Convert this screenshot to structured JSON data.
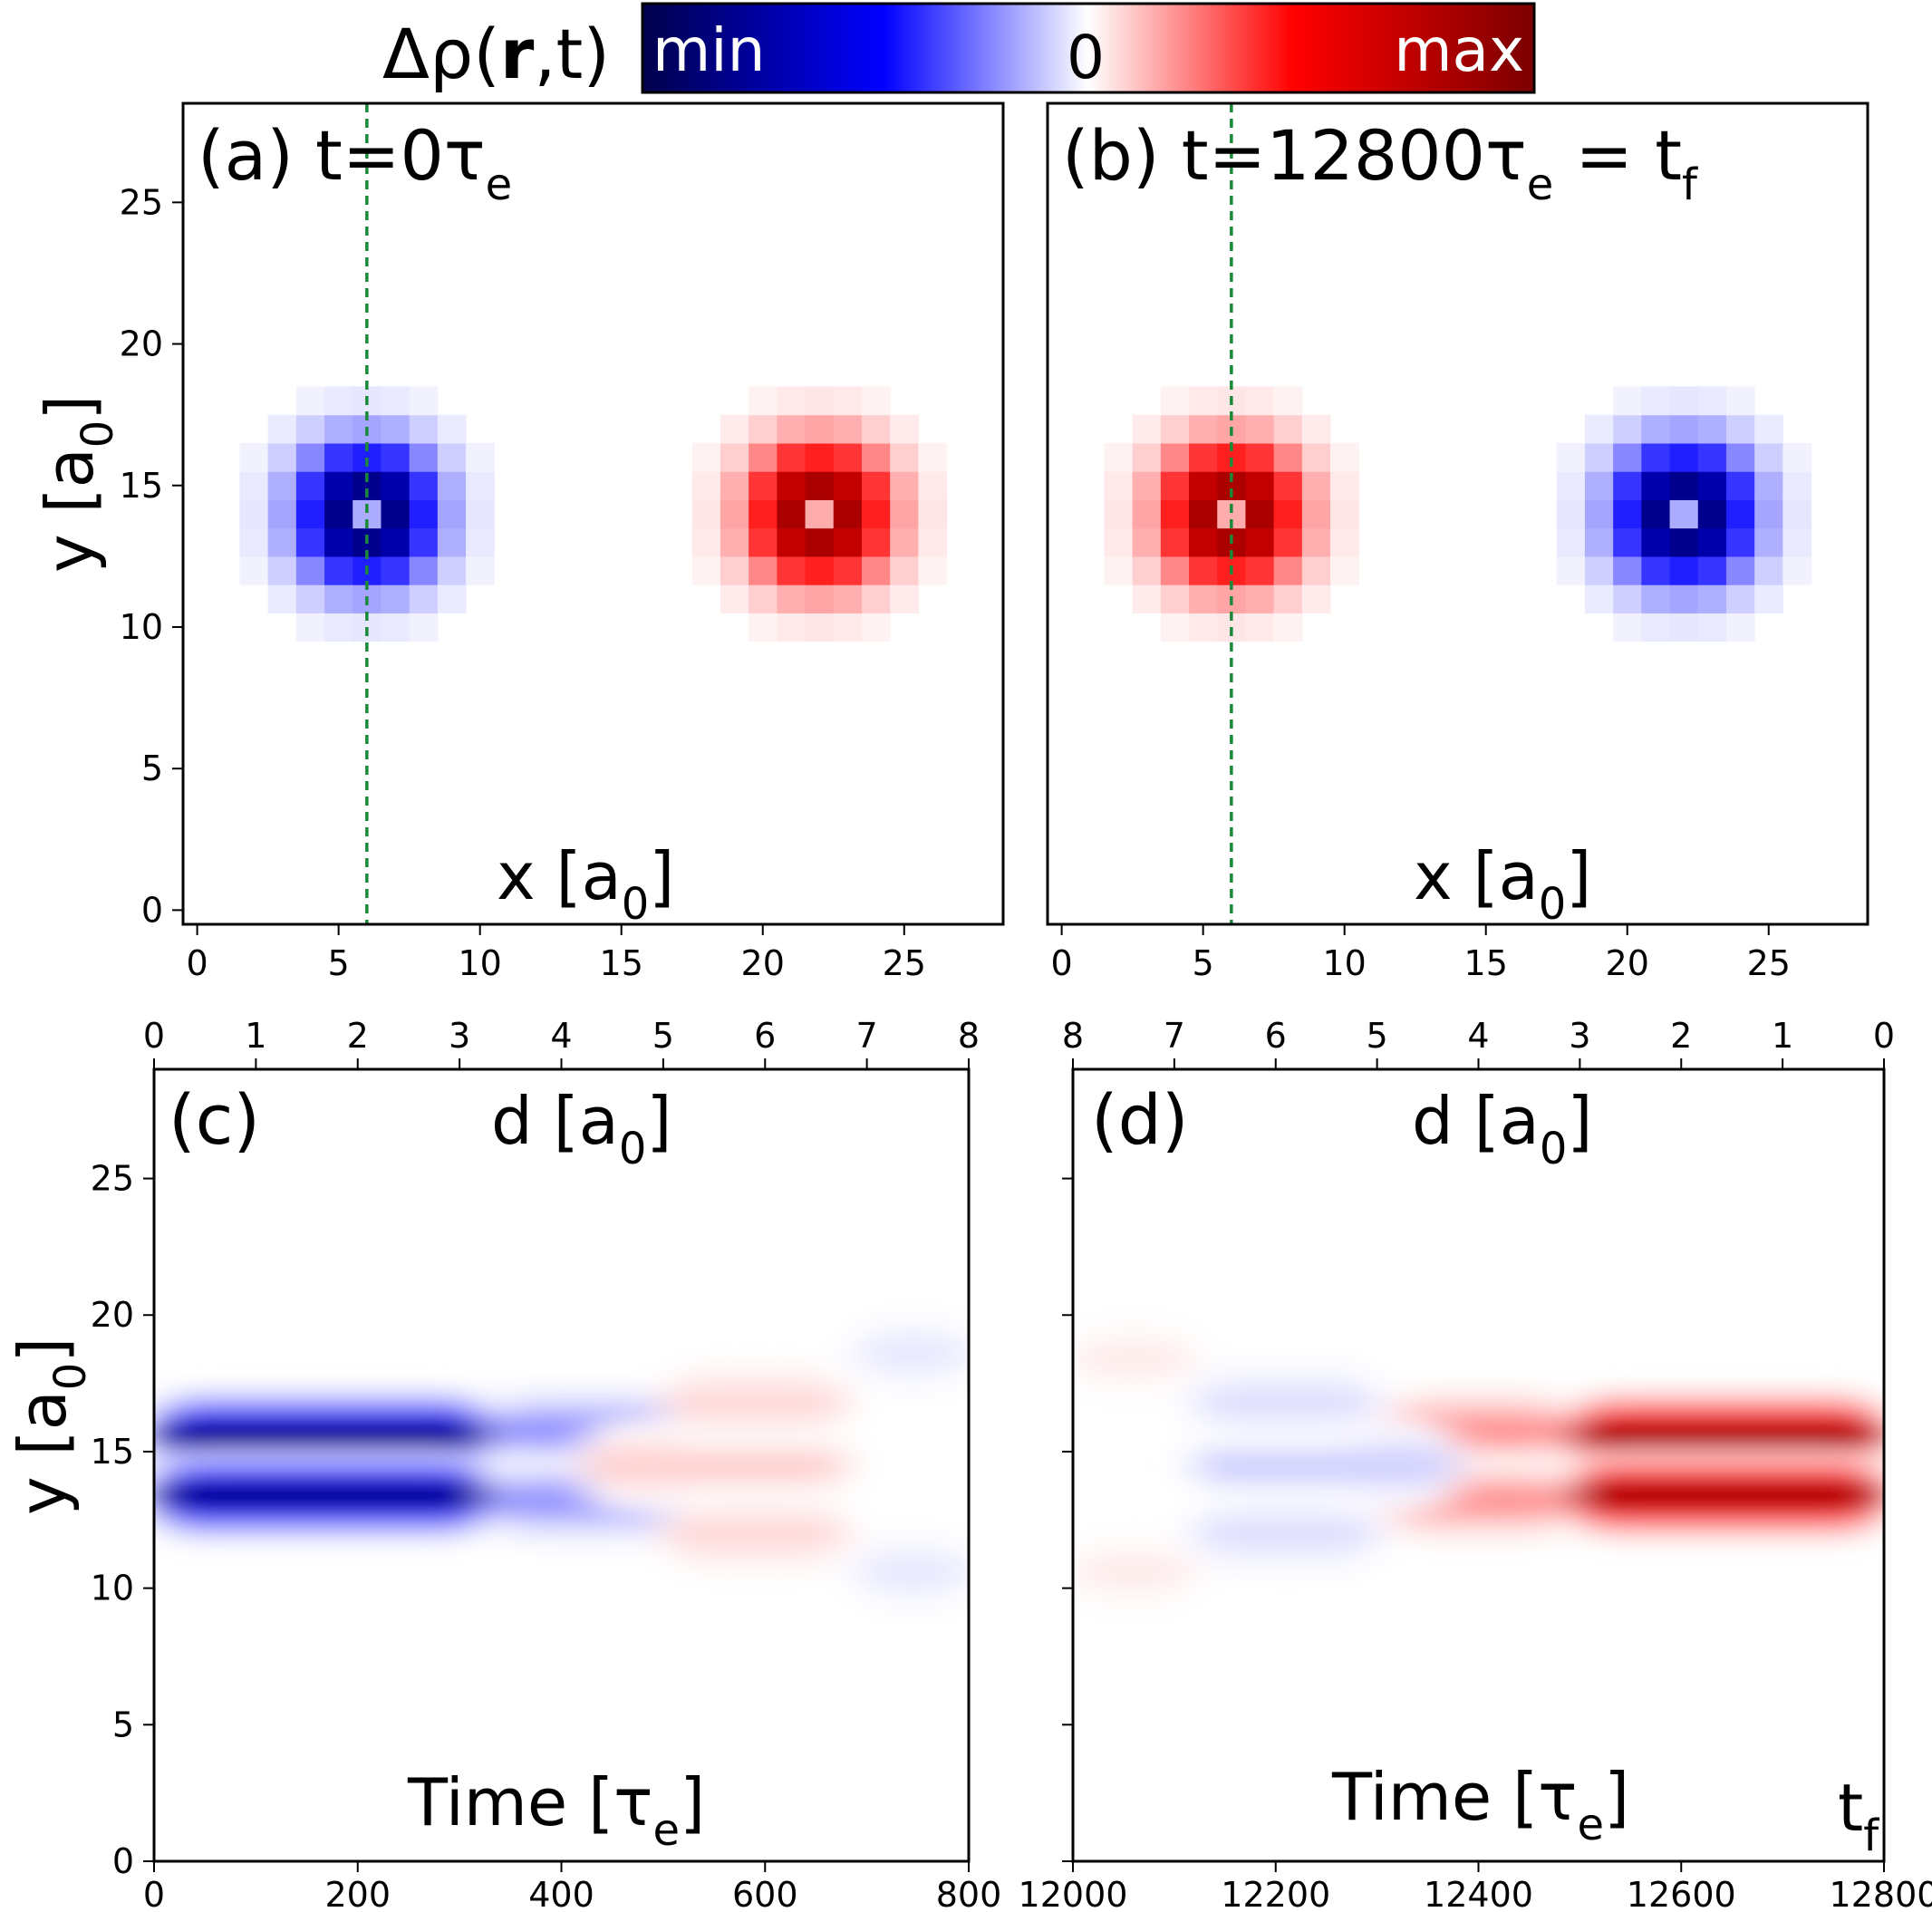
{
  "figure": {
    "colorbar": {
      "symbol": "Δρ(",
      "symbol_bold": "r",
      "symbol_tail": ",t)",
      "min_label": "min",
      "zero_label": "0",
      "max_label": "max",
      "colors": [
        "#00004a",
        "#0000ff",
        "#ffffff",
        "#ff0000",
        "#7a0000"
      ]
    },
    "panels": {
      "a": {
        "label": "(a) t=0τ",
        "label_sub": "e"
      },
      "b": {
        "label": "(b) t=12800τ",
        "label_sub": "e",
        "label_tail": " = t",
        "label_tail_sub": "f"
      },
      "c": {
        "label": "(c)"
      },
      "d": {
        "label": "(d)"
      }
    },
    "axis_texts": {
      "x_label": "x [a",
      "x_sub": "0",
      "x_close": "]",
      "y_label": "y [a",
      "y_sub": "0",
      "y_close": "]",
      "d_label": "d [a",
      "d_sub": "0",
      "d_close": "]",
      "time_label": "Time [τ",
      "time_sub": "e",
      "time_close": "]",
      "tf_label": "t",
      "tf_sub": "f"
    },
    "guide_line_color": "#1a8a3a"
  },
  "chart_data": [
    {
      "panel": "a",
      "type": "heatmap",
      "title": "(a) t=0τe",
      "xlabel": "x [a0]",
      "ylabel": "y [a0]",
      "xlim": [
        -0.5,
        28.5
      ],
      "ylim": [
        -0.5,
        28.5
      ],
      "xticks": [
        0,
        5,
        10,
        15,
        20,
        25
      ],
      "yticks": [
        0,
        5,
        10,
        15,
        20,
        25
      ],
      "guide_line_x": 6,
      "blobs": [
        {
          "center": [
            6,
            14
          ],
          "sign": -1,
          "amplitude": 1.0
        },
        {
          "center": [
            22,
            14
          ],
          "sign": 1,
          "amplitude": 1.0
        }
      ]
    },
    {
      "panel": "b",
      "type": "heatmap",
      "title": "(b) t=12800τe = tf",
      "xlabel": "x [a0]",
      "xlim": [
        -0.5,
        28.5
      ],
      "ylim": [
        -0.5,
        28.5
      ],
      "xticks": [
        0,
        5,
        10,
        15,
        20,
        25
      ],
      "guide_line_x": 6,
      "blobs": [
        {
          "center": [
            6,
            14
          ],
          "sign": 1,
          "amplitude": 1.0
        },
        {
          "center": [
            22,
            14
          ],
          "sign": -1,
          "amplitude": 1.0
        }
      ]
    },
    {
      "panel": "c",
      "type": "heatmap",
      "xlabel": "Time [τe]",
      "ylabel": "y [a0]",
      "top_xlabel": "d [a0]",
      "xlim": [
        0,
        800
      ],
      "ylim": [
        0,
        29
      ],
      "xticks": [
        0,
        200,
        400,
        600,
        800
      ],
      "yticks": [
        0,
        5,
        10,
        15,
        20,
        25
      ],
      "top_ticks": [
        0,
        1,
        2,
        3,
        4,
        5,
        6,
        7,
        8
      ],
      "top_ticks_reversed": false,
      "bands": [
        {
          "t_start": 0,
          "t_end": 330,
          "y": 15.6,
          "sign": -1,
          "amplitude": 1.0
        },
        {
          "t_start": 0,
          "t_end": 330,
          "y": 13.4,
          "sign": -1,
          "amplitude": 1.0
        },
        {
          "t_start": 330,
          "t_end": 510,
          "y": 15.8,
          "sign": -1,
          "amplitude": 0.28
        },
        {
          "t_start": 330,
          "t_end": 510,
          "y": 13.2,
          "sign": -1,
          "amplitude": 0.28
        },
        {
          "t_start": 420,
          "t_end": 680,
          "y": 14.5,
          "sign": 1,
          "amplitude": 0.12
        },
        {
          "t_start": 500,
          "t_end": 680,
          "y": 16.8,
          "sign": 1,
          "amplitude": 0.1
        },
        {
          "t_start": 500,
          "t_end": 680,
          "y": 12.0,
          "sign": 1,
          "amplitude": 0.1
        },
        {
          "t_start": 690,
          "t_end": 800,
          "y": 18.6,
          "sign": -1,
          "amplitude": 0.06
        },
        {
          "t_start": 690,
          "t_end": 800,
          "y": 10.6,
          "sign": -1,
          "amplitude": 0.06
        }
      ]
    },
    {
      "panel": "d",
      "type": "heatmap",
      "xlabel": "Time [τe]",
      "top_xlabel": "d [a0]",
      "xlim": [
        12000,
        12800
      ],
      "ylim": [
        0,
        29
      ],
      "xticks": [
        12000,
        12200,
        12400,
        12600,
        12800
      ],
      "top_ticks": [
        8,
        7,
        6,
        5,
        4,
        3,
        2,
        1,
        0
      ],
      "top_ticks_reversed": true,
      "bands": [
        {
          "t_start": 12490,
          "t_end": 12800,
          "y": 15.6,
          "sign": 1,
          "amplitude": 1.0
        },
        {
          "t_start": 12490,
          "t_end": 12800,
          "y": 13.4,
          "sign": 1,
          "amplitude": 1.0
        },
        {
          "t_start": 12310,
          "t_end": 12490,
          "y": 15.8,
          "sign": 1,
          "amplitude": 0.28
        },
        {
          "t_start": 12310,
          "t_end": 12490,
          "y": 13.2,
          "sign": 1,
          "amplitude": 0.28
        },
        {
          "t_start": 12120,
          "t_end": 12380,
          "y": 14.5,
          "sign": -1,
          "amplitude": 0.12
        },
        {
          "t_start": 12120,
          "t_end": 12300,
          "y": 16.8,
          "sign": -1,
          "amplitude": 0.08
        },
        {
          "t_start": 12120,
          "t_end": 12300,
          "y": 12.0,
          "sign": -1,
          "amplitude": 0.08
        },
        {
          "t_start": 12000,
          "t_end": 12120,
          "y": 18.4,
          "sign": 1,
          "amplitude": 0.05
        },
        {
          "t_start": 12000,
          "t_end": 12120,
          "y": 10.6,
          "sign": 1,
          "amplitude": 0.05
        }
      ]
    }
  ]
}
